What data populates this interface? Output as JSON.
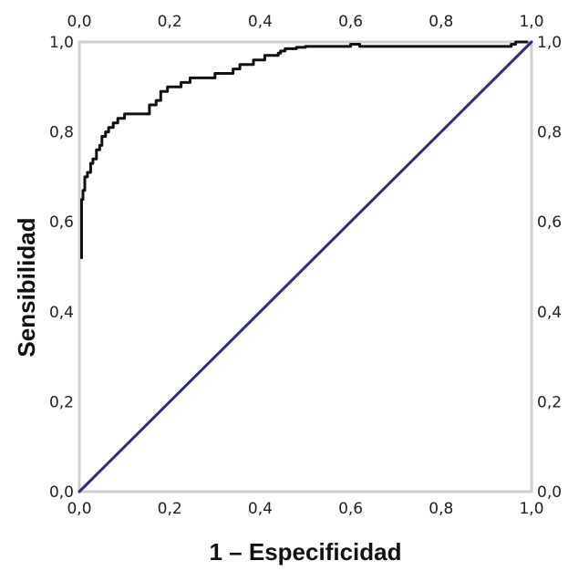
{
  "chart_data": {
    "type": "line",
    "title": "",
    "xlabel": "1 – Especificidad",
    "ylabel": "Sensibilidad",
    "xlim": [
      0,
      1
    ],
    "ylim": [
      0,
      1
    ],
    "grid": false,
    "legend": "none",
    "ticks": {
      "values": [
        0,
        0.2,
        0.4,
        0.6,
        0.8,
        1.0
      ],
      "labels": [
        "0,0",
        "0,2",
        "0,4",
        "0,6",
        "0,8",
        "1,0"
      ]
    },
    "series": [
      {
        "color": "#111111",
        "style": "step",
        "x": [
          0.005,
          0.005,
          0.008,
          0.008,
          0.012,
          0.012,
          0.018,
          0.018,
          0.025,
          0.025,
          0.03,
          0.03,
          0.038,
          0.038,
          0.045,
          0.045,
          0.05,
          0.05,
          0.058,
          0.058,
          0.065,
          0.065,
          0.075,
          0.075,
          0.085,
          0.085,
          0.1,
          0.1,
          0.155,
          0.155,
          0.17,
          0.17,
          0.18,
          0.18,
          0.195,
          0.195,
          0.225,
          0.225,
          0.245,
          0.245,
          0.3,
          0.3,
          0.34,
          0.34,
          0.355,
          0.355,
          0.385,
          0.385,
          0.41,
          0.41,
          0.44,
          0.44,
          0.445,
          0.445,
          0.455,
          0.455,
          0.48,
          0.48,
          0.5,
          0.5,
          0.6,
          0.6,
          0.62,
          0.62,
          0.955,
          0.955,
          0.965,
          0.965,
          0.99
        ],
        "y": [
          0.52,
          0.65,
          0.65,
          0.67,
          0.67,
          0.7,
          0.7,
          0.71,
          0.71,
          0.73,
          0.73,
          0.74,
          0.74,
          0.76,
          0.76,
          0.77,
          0.77,
          0.79,
          0.79,
          0.8,
          0.8,
          0.81,
          0.81,
          0.82,
          0.82,
          0.83,
          0.83,
          0.84,
          0.84,
          0.86,
          0.86,
          0.87,
          0.87,
          0.89,
          0.89,
          0.9,
          0.9,
          0.91,
          0.91,
          0.92,
          0.92,
          0.93,
          0.93,
          0.94,
          0.94,
          0.95,
          0.95,
          0.96,
          0.96,
          0.97,
          0.97,
          0.975,
          0.975,
          0.98,
          0.98,
          0.985,
          0.985,
          0.988,
          0.988,
          0.99,
          0.99,
          0.995,
          0.995,
          0.99,
          0.99,
          0.995,
          0.995,
          1.0,
          1.0
        ]
      },
      {
        "color": "#2e2e7e",
        "style": "diagonal",
        "x": [
          0,
          1
        ],
        "y": [
          0,
          1
        ]
      }
    ]
  }
}
